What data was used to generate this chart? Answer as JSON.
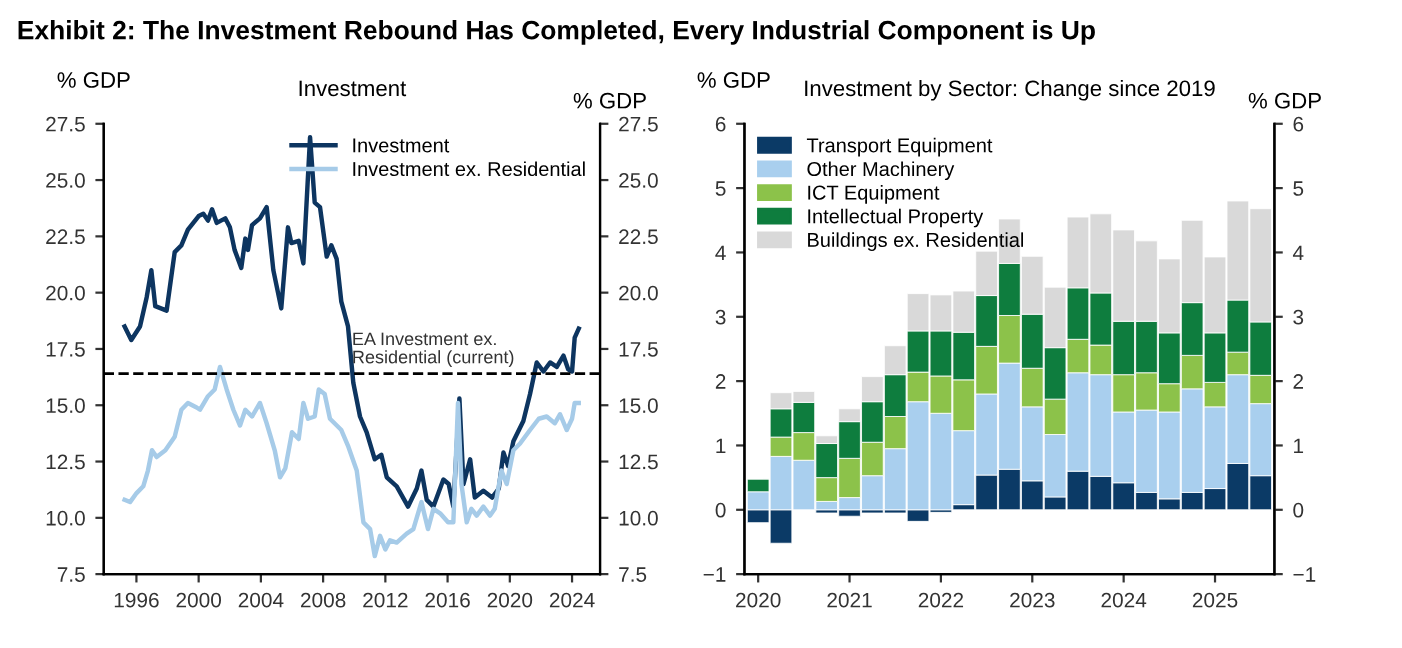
{
  "chart_data": [
    {
      "type": "line",
      "title": "Exhibit 2: The Investment Rebound Has Completed, Every Industrial Component is Up",
      "subtitle": "Investment",
      "ylabel": "% GDP",
      "y2label": "% GDP",
      "xlim": [
        1993.9,
        2025.8
      ],
      "xticks": [
        1996,
        2000,
        2004,
        2008,
        2012,
        2016,
        2020,
        2024
      ],
      "ylim": [
        7.5,
        27.5
      ],
      "yticks": [
        {
          "value": 7.5,
          "label": "7.5"
        },
        {
          "value": 10,
          "label": "10.0"
        },
        {
          "value": 12.5,
          "label": "12.5"
        },
        {
          "value": 15,
          "label": "15.0"
        },
        {
          "value": 17.5,
          "label": "17.5"
        },
        {
          "value": 20,
          "label": "20.0"
        },
        {
          "value": 22.5,
          "label": "22.5"
        },
        {
          "value": 25,
          "label": "25.0"
        },
        {
          "value": 27.5,
          "label": "27.5"
        }
      ],
      "y2lim": [
        7.5,
        27.5
      ],
      "y2ticks": [
        {
          "value": 7.5,
          "label": "7.5"
        },
        {
          "value": 10,
          "label": "10.0"
        },
        {
          "value": 12.5,
          "label": "12.5"
        },
        {
          "value": 15,
          "label": "15.0"
        },
        {
          "value": 17.5,
          "label": "17.5"
        },
        {
          "value": 20,
          "label": "20.0"
        },
        {
          "value": 22.5,
          "label": "22.5"
        },
        {
          "value": 25,
          "label": "25.0"
        },
        {
          "value": 27.5,
          "label": "27.5"
        }
      ],
      "legend": "top right",
      "grid": false,
      "ref_lines": [
        {
          "axis": "y",
          "value": 16.4,
          "label": "EA Investment ex.\nResidential (current)",
          "color": "#000000",
          "line_style": "dashed"
        }
      ],
      "series": [
        {
          "name": "Investment",
          "color": "#0d3560",
          "x": [
            1995.24,
            1995.67,
            1996.23,
            1996.66,
            1996.96,
            1997.21,
            1997.94,
            1998.46,
            1998.89,
            1999.31,
            2000.0,
            2000.3,
            2000.6,
            2000.86,
            2001.16,
            2001.71,
            2002.01,
            2002.31,
            2002.74,
            2003.0,
            2003.17,
            2003.43,
            2003.94,
            2004.37,
            2004.8,
            2005.31,
            2005.74,
            2005.96,
            2006.43,
            2006.73,
            2007.16,
            2007.46,
            2007.8,
            2008.23,
            2008.53,
            2008.87,
            2009.17,
            2009.6,
            2009.94,
            2010.37,
            2010.8,
            2011.32,
            2011.74,
            2012.09,
            2012.73,
            2013.46,
            2014.02,
            2014.32,
            2014.66,
            2015.09,
            2015.73,
            2016.07,
            2016.37,
            2016.76,
            2017.02,
            2017.45,
            2017.75,
            2018.3,
            2018.86,
            2019.29,
            2019.59,
            2019.89,
            2020.23,
            2020.87,
            2021.3,
            2021.73,
            2022.16,
            2022.59,
            2023.02,
            2023.45,
            2023.75,
            2024.0,
            2024.17,
            2024.43
          ],
          "values": [
            18.5,
            17.9,
            18.5,
            19.8,
            21.0,
            19.4,
            19.2,
            21.8,
            22.1,
            22.8,
            23.4,
            23.5,
            23.2,
            23.7,
            23.1,
            23.3,
            22.9,
            21.9,
            21.1,
            22.4,
            21.9,
            23.0,
            23.3,
            23.8,
            21.0,
            19.3,
            22.9,
            22.2,
            22.3,
            21.3,
            26.9,
            24.0,
            23.8,
            21.6,
            22.1,
            21.5,
            19.6,
            18.5,
            16.0,
            14.5,
            13.8,
            12.6,
            12.8,
            11.8,
            11.4,
            10.5,
            11.3,
            12.1,
            10.8,
            10.5,
            11.7,
            11.5,
            10.5,
            15.3,
            11.5,
            12.6,
            10.9,
            11.2,
            10.9,
            11.3,
            12.9,
            12.3,
            13.4,
            14.3,
            15.5,
            16.9,
            16.5,
            16.9,
            16.7,
            17.2,
            16.6,
            16.5,
            18.0,
            18.4
          ]
        },
        {
          "name": "Investment ex. Residential",
          "color": "#a6cbe8",
          "x": [
            1995.24,
            1995.59,
            1996.01,
            1996.44,
            1996.74,
            1997.0,
            1997.3,
            1997.86,
            1998.46,
            1998.89,
            1999.31,
            1999.87,
            2000.09,
            2000.6,
            2001.03,
            2001.37,
            2001.8,
            2002.23,
            2002.66,
            2003.0,
            2003.43,
            2003.94,
            2004.37,
            2004.89,
            2005.23,
            2005.57,
            2006.0,
            2006.43,
            2006.73,
            2007.03,
            2007.46,
            2007.72,
            2008.1,
            2008.44,
            2009.17,
            2009.6,
            2010.16,
            2010.59,
            2011.02,
            2011.32,
            2011.66,
            2012.0,
            2012.3,
            2012.73,
            2013.37,
            2013.8,
            2014.32,
            2014.74,
            2015.09,
            2015.52,
            2016.03,
            2016.37,
            2016.67,
            2016.89,
            2017.23,
            2017.53,
            2017.87,
            2018.3,
            2018.73,
            2019.03,
            2019.46,
            2019.8,
            2020.23,
            2020.66,
            2021.3,
            2021.86,
            2022.37,
            2022.89,
            2023.23,
            2023.66,
            2024.0,
            2024.17,
            2024.43
          ],
          "values": [
            10.8,
            10.7,
            11.1,
            11.4,
            12.1,
            13.0,
            12.7,
            13.0,
            13.6,
            14.8,
            15.1,
            14.9,
            14.8,
            15.4,
            15.7,
            16.7,
            15.7,
            14.8,
            14.1,
            14.8,
            14.5,
            15.1,
            14.2,
            13.0,
            11.8,
            12.2,
            13.8,
            13.5,
            15.1,
            14.4,
            14.5,
            15.7,
            15.5,
            14.4,
            13.9,
            13.2,
            12.1,
            9.8,
            9.5,
            8.3,
            9.2,
            8.6,
            9.0,
            8.9,
            9.3,
            9.5,
            10.7,
            9.5,
            10.4,
            10.2,
            9.8,
            9.8,
            15.1,
            11.5,
            9.8,
            10.4,
            10.1,
            10.5,
            10.1,
            10.4,
            12.1,
            11.5,
            13.0,
            13.3,
            13.9,
            14.4,
            14.5,
            14.2,
            14.6,
            13.9,
            14.4,
            15.1,
            15.1
          ]
        }
      ]
    },
    {
      "type": "bar",
      "stacked": true,
      "title": "Investment by Sector: Change since 2019",
      "ylabel": "% GDP",
      "y2label": "% GDP",
      "categories": [
        "2020",
        null,
        null,
        null,
        "2021",
        null,
        null,
        null,
        "2022",
        null,
        null,
        null,
        "2023",
        null,
        null,
        null,
        "2024",
        null,
        null,
        null,
        "2025",
        null,
        null
      ],
      "ylim": [
        -1,
        6
      ],
      "yticks": [
        {
          "value": -1,
          "label": "−1"
        },
        0,
        1,
        2,
        3,
        4,
        5,
        6
      ],
      "y2lim": [
        -1,
        6
      ],
      "y2ticks": [
        {
          "value": -1,
          "label": "−1"
        },
        0,
        1,
        2,
        3,
        4,
        5,
        6
      ],
      "legend": "top left",
      "grid": false,
      "series": [
        {
          "name": "Transport Equipment",
          "color": "#0b3a66",
          "values": [
            -0.2,
            -0.52,
            null,
            -0.05,
            -0.1,
            -0.05,
            -0.05,
            -0.18,
            -0.04,
            0.08,
            0.54,
            0.63,
            0.45,
            0.2,
            0.6,
            0.52,
            0.42,
            0.27,
            0.17,
            0.27,
            0.33,
            0.72,
            0.53
          ]
        },
        {
          "name": "Other Machinery",
          "color": "#a9cfee",
          "values": [
            0.28,
            0.83,
            0.77,
            0.13,
            0.19,
            0.53,
            0.95,
            1.68,
            1.5,
            1.15,
            1.26,
            1.65,
            1.15,
            0.97,
            1.53,
            1.58,
            1.1,
            1.28,
            1.35,
            1.61,
            1.27,
            1.38,
            1.12
          ]
        },
        {
          "name": "ICT Equipment",
          "color": "#8cc24a",
          "values": [
            null,
            0.3,
            0.43,
            0.37,
            0.61,
            0.52,
            0.5,
            0.46,
            0.58,
            0.79,
            0.74,
            0.74,
            0.6,
            0.55,
            0.52,
            0.46,
            0.58,
            0.58,
            0.44,
            0.52,
            0.38,
            0.35,
            0.44
          ]
        },
        {
          "name": "Intellectual Property",
          "color": "#0e7d3e",
          "values": [
            0.2,
            0.44,
            0.47,
            0.53,
            0.57,
            0.63,
            0.65,
            0.64,
            0.7,
            0.74,
            0.79,
            0.81,
            0.84,
            0.8,
            0.8,
            0.81,
            0.83,
            0.8,
            0.79,
            0.82,
            0.77,
            0.81,
            0.83
          ]
        },
        {
          "name": "Buildings ex. Residential",
          "color": "#d9d9d9",
          "values": [
            0,
            0.25,
            0.17,
            0.12,
            0.2,
            0.39,
            0.45,
            0.58,
            0.56,
            0.64,
            0.69,
            0.69,
            0.9,
            0.94,
            1.1,
            1.23,
            1.42,
            1.25,
            1.15,
            1.28,
            1.18,
            1.54,
            1.76
          ]
        }
      ]
    }
  ]
}
